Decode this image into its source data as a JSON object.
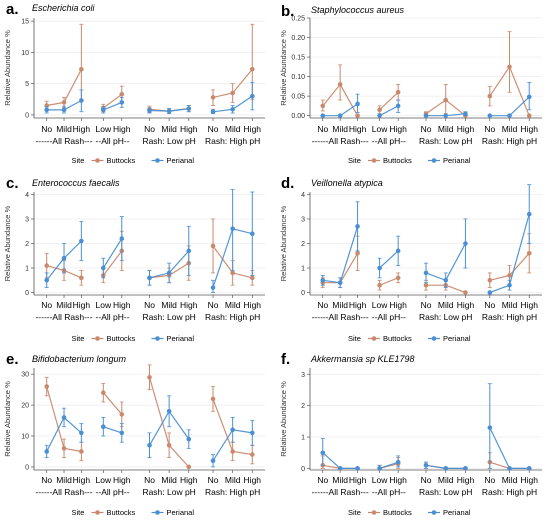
{
  "colors": {
    "buttocks": "#c9896c",
    "perianal": "#4a8fd4",
    "axis": "#555555",
    "grid": "#ebebeb"
  },
  "legend": {
    "title": "Site",
    "items": [
      "Buttocks",
      "Perianal"
    ]
  },
  "ylabel": "Relative Abundance %",
  "chart_data": [
    {
      "type": "line",
      "panel": "a.",
      "title": "Escherichia coli",
      "ylabel": "Relative Abundance %",
      "ylim": [
        -0.5,
        15.5
      ],
      "yticks": [
        0,
        5,
        10,
        15
      ],
      "groups": [
        {
          "label": "------All Rash---",
          "categories": [
            "No",
            "Mild",
            "High"
          ],
          "buttocks": {
            "y": [
              1.5,
              2,
              7.3
            ],
            "lo": [
              0.8,
              1.2,
              2.5
            ],
            "hi": [
              2.2,
              2.8,
              14.5
            ]
          },
          "perianal": {
            "y": [
              0.8,
              0.8,
              2.3
            ],
            "lo": [
              0.3,
              0.3,
              0.5
            ],
            "hi": [
              1.3,
              1.4,
              4
            ]
          }
        },
        {
          "label": "--All pH--",
          "categories": [
            "Low",
            "High"
          ],
          "buttocks": {
            "y": [
              1.1,
              3.3
            ],
            "lo": [
              0.5,
              2
            ],
            "hi": [
              1.7,
              4.6
            ]
          },
          "perianal": {
            "y": [
              0.8,
              2
            ],
            "lo": [
              0.3,
              1.2
            ],
            "hi": [
              1.3,
              2.8
            ]
          }
        },
        {
          "label": "Rash: Low pH",
          "categories": [
            "No",
            "Mild",
            "High"
          ],
          "buttocks": {
            "y": [
              0.9,
              0.6,
              1
            ],
            "lo": [
              0.4,
              0.2,
              0.5
            ],
            "hi": [
              1.4,
              1,
              1.5
            ]
          },
          "perianal": {
            "y": [
              0.7,
              0.6,
              1
            ],
            "lo": [
              0.3,
              0.2,
              0.5
            ],
            "hi": [
              1.1,
              1,
              1.5
            ]
          }
        },
        {
          "label": "Rash: High pH",
          "categories": [
            "No",
            "Mild",
            "High"
          ],
          "buttocks": {
            "y": [
              2.8,
              3.5,
              7.3
            ],
            "lo": [
              1.5,
              2,
              2.5
            ],
            "hi": [
              4,
              5,
              14.5
            ]
          },
          "perianal": {
            "y": [
              0.5,
              0.9,
              3
            ],
            "lo": [
              0.2,
              0.3,
              0.8
            ],
            "hi": [
              0.9,
              1.5,
              5.2
            ]
          }
        }
      ]
    },
    {
      "type": "line",
      "panel": "b.",
      "title": "Staphylococcus aureus",
      "ylabel": "Relative Abundance %",
      "ylim": [
        -0.006,
        0.25
      ],
      "yticks": [
        0,
        0.05,
        0.1,
        0.15,
        0.2,
        0.25
      ],
      "ytickLabels": [
        "0.00",
        "0.05",
        "0.10",
        "0.15",
        "0.20",
        "0.25"
      ],
      "groups": [
        {
          "label": "------All Rash---",
          "categories": [
            "No",
            "Mild",
            "High"
          ],
          "buttocks": {
            "y": [
              0.025,
              0.08,
              0
            ],
            "lo": [
              0.012,
              0.04,
              0
            ],
            "hi": [
              0.04,
              0.13,
              0
            ]
          },
          "perianal": {
            "y": [
              0,
              0,
              0.03
            ],
            "lo": [
              0,
              0,
              0.008
            ],
            "hi": [
              0,
              0,
              0.055
            ]
          }
        },
        {
          "label": "--All pH--",
          "categories": [
            "Low",
            "High"
          ],
          "buttocks": {
            "y": [
              0.015,
              0.06
            ],
            "lo": [
              0.005,
              0.04
            ],
            "hi": [
              0.025,
              0.08
            ]
          },
          "perianal": {
            "y": [
              0,
              0.025
            ],
            "lo": [
              0,
              0.008
            ],
            "hi": [
              0,
              0.04
            ]
          }
        },
        {
          "label": "Rash: Low pH",
          "categories": [
            "No",
            "Mild",
            "High"
          ],
          "buttocks": {
            "y": [
              0.005,
              0.04,
              0
            ],
            "lo": [
              0,
              0.005,
              0
            ],
            "hi": [
              0.01,
              0.08,
              0
            ]
          },
          "perianal": {
            "y": [
              0,
              0,
              0.005
            ],
            "lo": [
              0,
              0,
              0
            ],
            "hi": [
              0,
              0,
              0.01
            ]
          }
        },
        {
          "label": "Rash: High pH",
          "categories": [
            "No",
            "Mild",
            "High"
          ],
          "buttocks": {
            "y": [
              0.05,
              0.125,
              0
            ],
            "lo": [
              0.025,
              0.06,
              0
            ],
            "hi": [
              0.075,
              0.215,
              0
            ]
          },
          "perianal": {
            "y": [
              0,
              0,
              0.048
            ],
            "lo": [
              0,
              0,
              0.015
            ],
            "hi": [
              0,
              0,
              0.085
            ]
          }
        }
      ]
    },
    {
      "type": "line",
      "panel": "c.",
      "title": "Enterococcus faecalis",
      "ylabel": "Relative Abundance %",
      "ylim": [
        -0.1,
        4.1
      ],
      "yticks": [
        0,
        1,
        2,
        3,
        4
      ],
      "groups": [
        {
          "label": "------All Rash---",
          "categories": [
            "No",
            "Mild",
            "High"
          ],
          "buttocks": {
            "y": [
              1.1,
              0.9,
              0.6
            ],
            "lo": [
              0.6,
              0.5,
              0.3
            ],
            "hi": [
              1.6,
              1.3,
              0.9
            ]
          },
          "perianal": {
            "y": [
              0.5,
              1.4,
              2.1
            ],
            "lo": [
              0.2,
              0.8,
              1.3
            ],
            "hi": [
              0.8,
              2,
              2.9
            ]
          }
        },
        {
          "label": "--All pH--",
          "categories": [
            "Low",
            "High"
          ],
          "buttocks": {
            "y": [
              0.7,
              1.7
            ],
            "lo": [
              0.4,
              0.9
            ],
            "hi": [
              1,
              2.5
            ]
          },
          "perianal": {
            "y": [
              1,
              2.2
            ],
            "lo": [
              0.6,
              1.3
            ],
            "hi": [
              1.4,
              3.1
            ]
          }
        },
        {
          "label": "Rash: Low pH",
          "categories": [
            "No",
            "Mild",
            "High"
          ],
          "buttocks": {
            "y": [
              0.6,
              0.7,
              1.2
            ],
            "lo": [
              0.3,
              0.4,
              0.5
            ],
            "hi": [
              0.9,
              1,
              1.9
            ]
          },
          "perianal": {
            "y": [
              0.6,
              0.8,
              1.7
            ],
            "lo": [
              0.3,
              0.4,
              0.7
            ],
            "hi": [
              0.9,
              1.2,
              2.7
            ]
          }
        },
        {
          "label": "Rash: High pH",
          "categories": [
            "No",
            "Mild",
            "High"
          ],
          "buttocks": {
            "y": [
              1.9,
              0.8,
              0.6
            ],
            "lo": [
              0.8,
              0.3,
              0.3
            ],
            "hi": [
              3,
              1.3,
              0.9
            ]
          },
          "perianal": {
            "y": [
              0.2,
              2.6,
              2.4
            ],
            "lo": [
              0,
              0.9,
              0.7
            ],
            "hi": [
              0.5,
              4.2,
              4.1
            ]
          }
        }
      ]
    },
    {
      "type": "line",
      "panel": "d.",
      "title": "Veillonella atypica",
      "ylabel": "Relative Abundance %",
      "ylim": [
        -0.1,
        4.1
      ],
      "yticks": [
        0,
        1,
        2,
        3,
        4
      ],
      "groups": [
        {
          "label": "------All Rash---",
          "categories": [
            "No",
            "Mild",
            "High"
          ],
          "buttocks": {
            "y": [
              0.4,
              0.4,
              1.6
            ],
            "lo": [
              0.2,
              0.2,
              0.9
            ],
            "hi": [
              0.6,
              0.6,
              2.3
            ]
          },
          "perianal": {
            "y": [
              0.5,
              0.4,
              2.7
            ],
            "lo": [
              0.3,
              0.2,
              1.7
            ],
            "hi": [
              0.7,
              0.6,
              3.7
            ]
          }
        },
        {
          "label": "--All pH--",
          "categories": [
            "Low",
            "High"
          ],
          "buttocks": {
            "y": [
              0.3,
              0.6
            ],
            "lo": [
              0.1,
              0.4
            ],
            "hi": [
              0.5,
              0.8
            ]
          },
          "perianal": {
            "y": [
              1,
              1.7
            ],
            "lo": [
              0.6,
              1.1
            ],
            "hi": [
              1.4,
              2.3
            ]
          }
        },
        {
          "label": "Rash: Low pH",
          "categories": [
            "No",
            "Mild",
            "High"
          ],
          "buttocks": {
            "y": [
              0.3,
              0.3,
              0
            ],
            "lo": [
              0.1,
              0.1,
              0
            ],
            "hi": [
              0.5,
              0.5,
              0
            ]
          },
          "perianal": {
            "y": [
              0.8,
              0.5,
              2
            ],
            "lo": [
              0.4,
              0.2,
              1
            ],
            "hi": [
              1.2,
              0.8,
              3
            ]
          }
        },
        {
          "label": "Rash: High pH",
          "categories": [
            "No",
            "Mild",
            "High"
          ],
          "buttocks": {
            "y": [
              0.5,
              0.7,
              1.6
            ],
            "lo": [
              0.2,
              0.3,
              0.8
            ],
            "hi": [
              0.8,
              1.1,
              2.4
            ]
          },
          "perianal": {
            "y": [
              0,
              0.3,
              3.2
            ],
            "lo": [
              0,
              0.1,
              2
            ],
            "hi": [
              0,
              0.5,
              4.4
            ]
          }
        }
      ]
    },
    {
      "type": "line",
      "panel": "e.",
      "title": "Bifidobacterium longum",
      "ylabel": "Relative Abundance %",
      "ylim": [
        -1,
        32
      ],
      "yticks": [
        0,
        10,
        20,
        30
      ],
      "groups": [
        {
          "label": "------All Rash---",
          "categories": [
            "No",
            "Mild",
            "High"
          ],
          "buttocks": {
            "y": [
              26,
              6,
              5
            ],
            "lo": [
              23,
              3,
              2
            ],
            "hi": [
              29,
              9,
              8
            ]
          },
          "perianal": {
            "y": [
              5,
              16,
              11
            ],
            "lo": [
              3,
              13,
              8
            ],
            "hi": [
              7,
              19,
              14
            ]
          }
        },
        {
          "label": "--All pH--",
          "categories": [
            "Low",
            "High"
          ],
          "buttocks": {
            "y": [
              24,
              17
            ],
            "lo": [
              21,
              13
            ],
            "hi": [
              27,
              21
            ]
          },
          "perianal": {
            "y": [
              13,
              11
            ],
            "lo": [
              10,
              8
            ],
            "hi": [
              16,
              14
            ]
          }
        },
        {
          "label": "Rash: Low pH",
          "categories": [
            "No",
            "Mild",
            "High"
          ],
          "buttocks": {
            "y": [
              29,
              7,
              0
            ],
            "lo": [
              25,
              3,
              0
            ],
            "hi": [
              33,
              11,
              0
            ]
          },
          "perianal": {
            "y": [
              7,
              18,
              9
            ],
            "lo": [
              3,
              13,
              6
            ],
            "hi": [
              11,
              23,
              12
            ]
          }
        },
        {
          "label": "Rash: High pH",
          "categories": [
            "No",
            "Mild",
            "High"
          ],
          "buttocks": {
            "y": [
              22,
              5,
              4
            ],
            "lo": [
              18,
              2,
              1
            ],
            "hi": [
              26,
              8,
              7
            ]
          },
          "perianal": {
            "y": [
              2,
              12,
              11
            ],
            "lo": [
              0,
              8,
              7
            ],
            "hi": [
              4,
              16,
              15
            ]
          }
        }
      ]
    },
    {
      "type": "line",
      "panel": "f.",
      "title": "Akkermansia sp KLE1798",
      "ylabel": "Relative Abundance %",
      "ylim": [
        -0.05,
        3.2
      ],
      "yticks": [
        0,
        1,
        2,
        3
      ],
      "groups": [
        {
          "label": "------All Rash---",
          "categories": [
            "No",
            "Mild",
            "High"
          ],
          "buttocks": {
            "y": [
              0.1,
              0,
              0
            ],
            "lo": [
              0,
              0,
              0
            ],
            "hi": [
              0.4,
              0,
              0
            ]
          },
          "perianal": {
            "y": [
              0.5,
              0,
              0
            ],
            "lo": [
              0.1,
              0,
              0
            ],
            "hi": [
              0.95,
              0,
              0
            ]
          }
        },
        {
          "label": "--All pH--",
          "categories": [
            "Low",
            "High"
          ],
          "buttocks": {
            "y": [
              0,
              0.15
            ],
            "lo": [
              0,
              0
            ],
            "hi": [
              0.1,
              0.35
            ]
          },
          "perianal": {
            "y": [
              0,
              0.2
            ],
            "lo": [
              0,
              0.05
            ],
            "hi": [
              0.1,
              0.4
            ]
          }
        },
        {
          "label": "Rash: Low pH",
          "categories": [
            "No",
            "Mild",
            "High"
          ],
          "buttocks": {
            "y": [
              0.1,
              0,
              0
            ],
            "lo": [
              0,
              0,
              0
            ],
            "hi": [
              0.2,
              0,
              0
            ]
          },
          "perianal": {
            "y": [
              0.1,
              0,
              0
            ],
            "lo": [
              0,
              0,
              0
            ],
            "hi": [
              0.2,
              0,
              0
            ]
          }
        },
        {
          "label": "Rash: High pH",
          "categories": [
            "No",
            "Mild",
            "High"
          ],
          "buttocks": {
            "y": [
              0.2,
              0,
              0
            ],
            "lo": [
              0,
              0,
              0
            ],
            "hi": [
              0.5,
              0,
              0
            ]
          },
          "perianal": {
            "y": [
              1.3,
              0,
              0
            ],
            "lo": [
              0,
              0,
              0
            ],
            "hi": [
              2.7,
              0,
              0
            ]
          }
        }
      ]
    }
  ]
}
